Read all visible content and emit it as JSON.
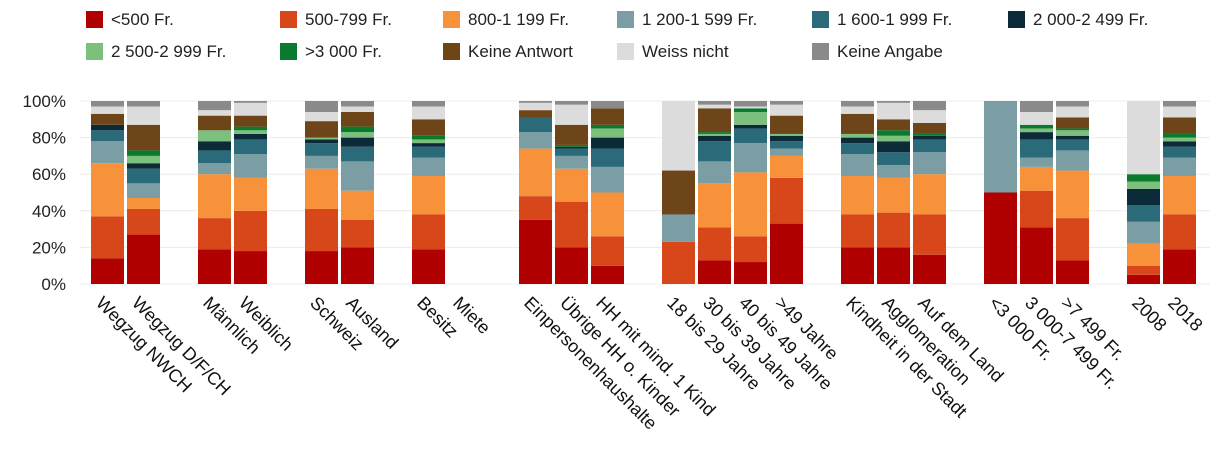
{
  "chart_data": {
    "type": "bar",
    "stacked": true,
    "legend_position": "top",
    "grid": true,
    "ylim": [
      0,
      100
    ],
    "yticks": [
      "0%",
      "20%",
      "40%",
      "60%",
      "80%",
      "100%"
    ],
    "legend": [
      {
        "label": "<500 Fr.",
        "color": "#b00000"
      },
      {
        "label": "500-799 Fr.",
        "color": "#d8471a"
      },
      {
        "label": "800-1 199 Fr.",
        "color": "#f7923a"
      },
      {
        "label": "1 200-1 599 Fr.",
        "color": "#7a9ea4"
      },
      {
        "label": "1 600-1 999 Fr.",
        "color": "#2b6a78"
      },
      {
        "label": "2 000-2 499 Fr.",
        "color": "#0c2b38"
      },
      {
        "label": "2 500-2 999 Fr.",
        "color": "#7dbf7d"
      },
      {
        "label": ">3 000 Fr.",
        "color": "#0a7a2e"
      },
      {
        "label": "Keine Antwort",
        "color": "#6e4419"
      },
      {
        "label": "Weiss nicht",
        "color": "#dcdcdc"
      },
      {
        "label": "Keine Angabe",
        "color": "#8a8a8a"
      }
    ],
    "groups": [
      {
        "bars": [
          {
            "label": "Wegzug NWCH",
            "values": [
              14,
              23,
              29,
              12,
              6,
              3,
              0,
              0,
              6,
              4,
              3
            ]
          },
          {
            "label": "Wegzug D/F/CH",
            "values": [
              27,
              14,
              6,
              8,
              8,
              3,
              4,
              3,
              14,
              10,
              3
            ]
          }
        ]
      },
      {
        "bars": [
          {
            "label": "Männlich",
            "values": [
              19,
              17,
              24,
              6,
              7,
              5,
              6,
              0,
              8,
              3,
              5
            ]
          },
          {
            "label": "Weiblich",
            "values": [
              18,
              22,
              18,
              13,
              8,
              3,
              2,
              2,
              6,
              7,
              1
            ]
          }
        ]
      },
      {
        "bars": [
          {
            "label": "Schweiz",
            "values": [
              18,
              23,
              22,
              7,
              7,
              2,
              1,
              0,
              9,
              5,
              6
            ]
          },
          {
            "label": "Ausland",
            "values": [
              20,
              15,
              16,
              16,
              8,
              5,
              3,
              3,
              8,
              3,
              3
            ]
          }
        ]
      },
      {
        "bars": [
          {
            "label": "Besitz",
            "values": [
              19,
              19,
              21,
              10,
              6,
              2,
              2,
              2,
              9,
              7,
              3
            ]
          },
          {
            "label": "Miete",
            "values": []
          }
        ]
      },
      {
        "bars": [
          {
            "label": "Einpersonenhaushalte",
            "values": [
              35,
              13,
              26,
              9,
              8,
              0,
              0,
              0,
              4,
              4,
              1
            ]
          },
          {
            "label": "Übrige HH o. Kinder",
            "values": [
              20,
              25,
              18,
              7,
              4,
              1,
              0,
              1,
              11,
              11,
              2
            ]
          },
          {
            "label": "HH mit mind. 1 Kind",
            "values": [
              10,
              16,
              24,
              14,
              10,
              6,
              5,
              2,
              9,
              0,
              4
            ]
          }
        ]
      },
      {
        "bars": [
          {
            "label": "18 bis 29 Jahre",
            "values": [
              0,
              23,
              0,
              15,
              0,
              0,
              0,
              0,
              24,
              38,
              0
            ]
          },
          {
            "label": "30 bis 39 Jahre",
            "values": [
              13,
              18,
              24,
              12,
              11,
              3,
              1,
              1,
              13,
              2,
              2
            ]
          },
          {
            "label": "40 bis 49 Jahre",
            "values": [
              12,
              14,
              35,
              16,
              8,
              2,
              7,
              2,
              0,
              1,
              3
            ]
          },
          {
            "label": ">49 Jahre",
            "values": [
              33,
              25,
              12,
              4,
              4,
              3,
              1,
              0,
              10,
              6,
              2
            ]
          }
        ]
      },
      {
        "bars": [
          {
            "label": "Kindheit in der Stadt",
            "values": [
              20,
              18,
              21,
              12,
              6,
              3,
              2,
              0,
              11,
              4,
              3
            ]
          },
          {
            "label": "Agglomeration",
            "values": [
              20,
              19,
              19,
              7,
              7,
              6,
              3,
              3,
              6,
              9,
              1
            ]
          },
          {
            "label": "Auf dem Land",
            "values": [
              16,
              22,
              22,
              12,
              7,
              2,
              0,
              1,
              6,
              7,
              5
            ]
          }
        ]
      },
      {
        "bars": [
          {
            "label": "<3 000 Fr.",
            "values": [
              50,
              0,
              0,
              50,
              0,
              0,
              0,
              0,
              0,
              0,
              0
            ]
          },
          {
            "label": "3 000-7 499 Fr.",
            "values": [
              31,
              20,
              13,
              5,
              10,
              4,
              2,
              2,
              0,
              7,
              6
            ]
          },
          {
            "label": ">7 499 Fr.",
            "values": [
              13,
              23,
              26,
              11,
              6,
              2,
              3,
              1,
              6,
              6,
              3
            ]
          }
        ]
      },
      {
        "bars": [
          {
            "label": "2008",
            "values": [
              5,
              5,
              12,
              12,
              9,
              9,
              4,
              4,
              0,
              40,
              0
            ]
          },
          {
            "label": "2018",
            "values": [
              19,
              19,
              21,
              10,
              6,
              3,
              2,
              2,
              9,
              6,
              3
            ]
          }
        ]
      }
    ]
  }
}
